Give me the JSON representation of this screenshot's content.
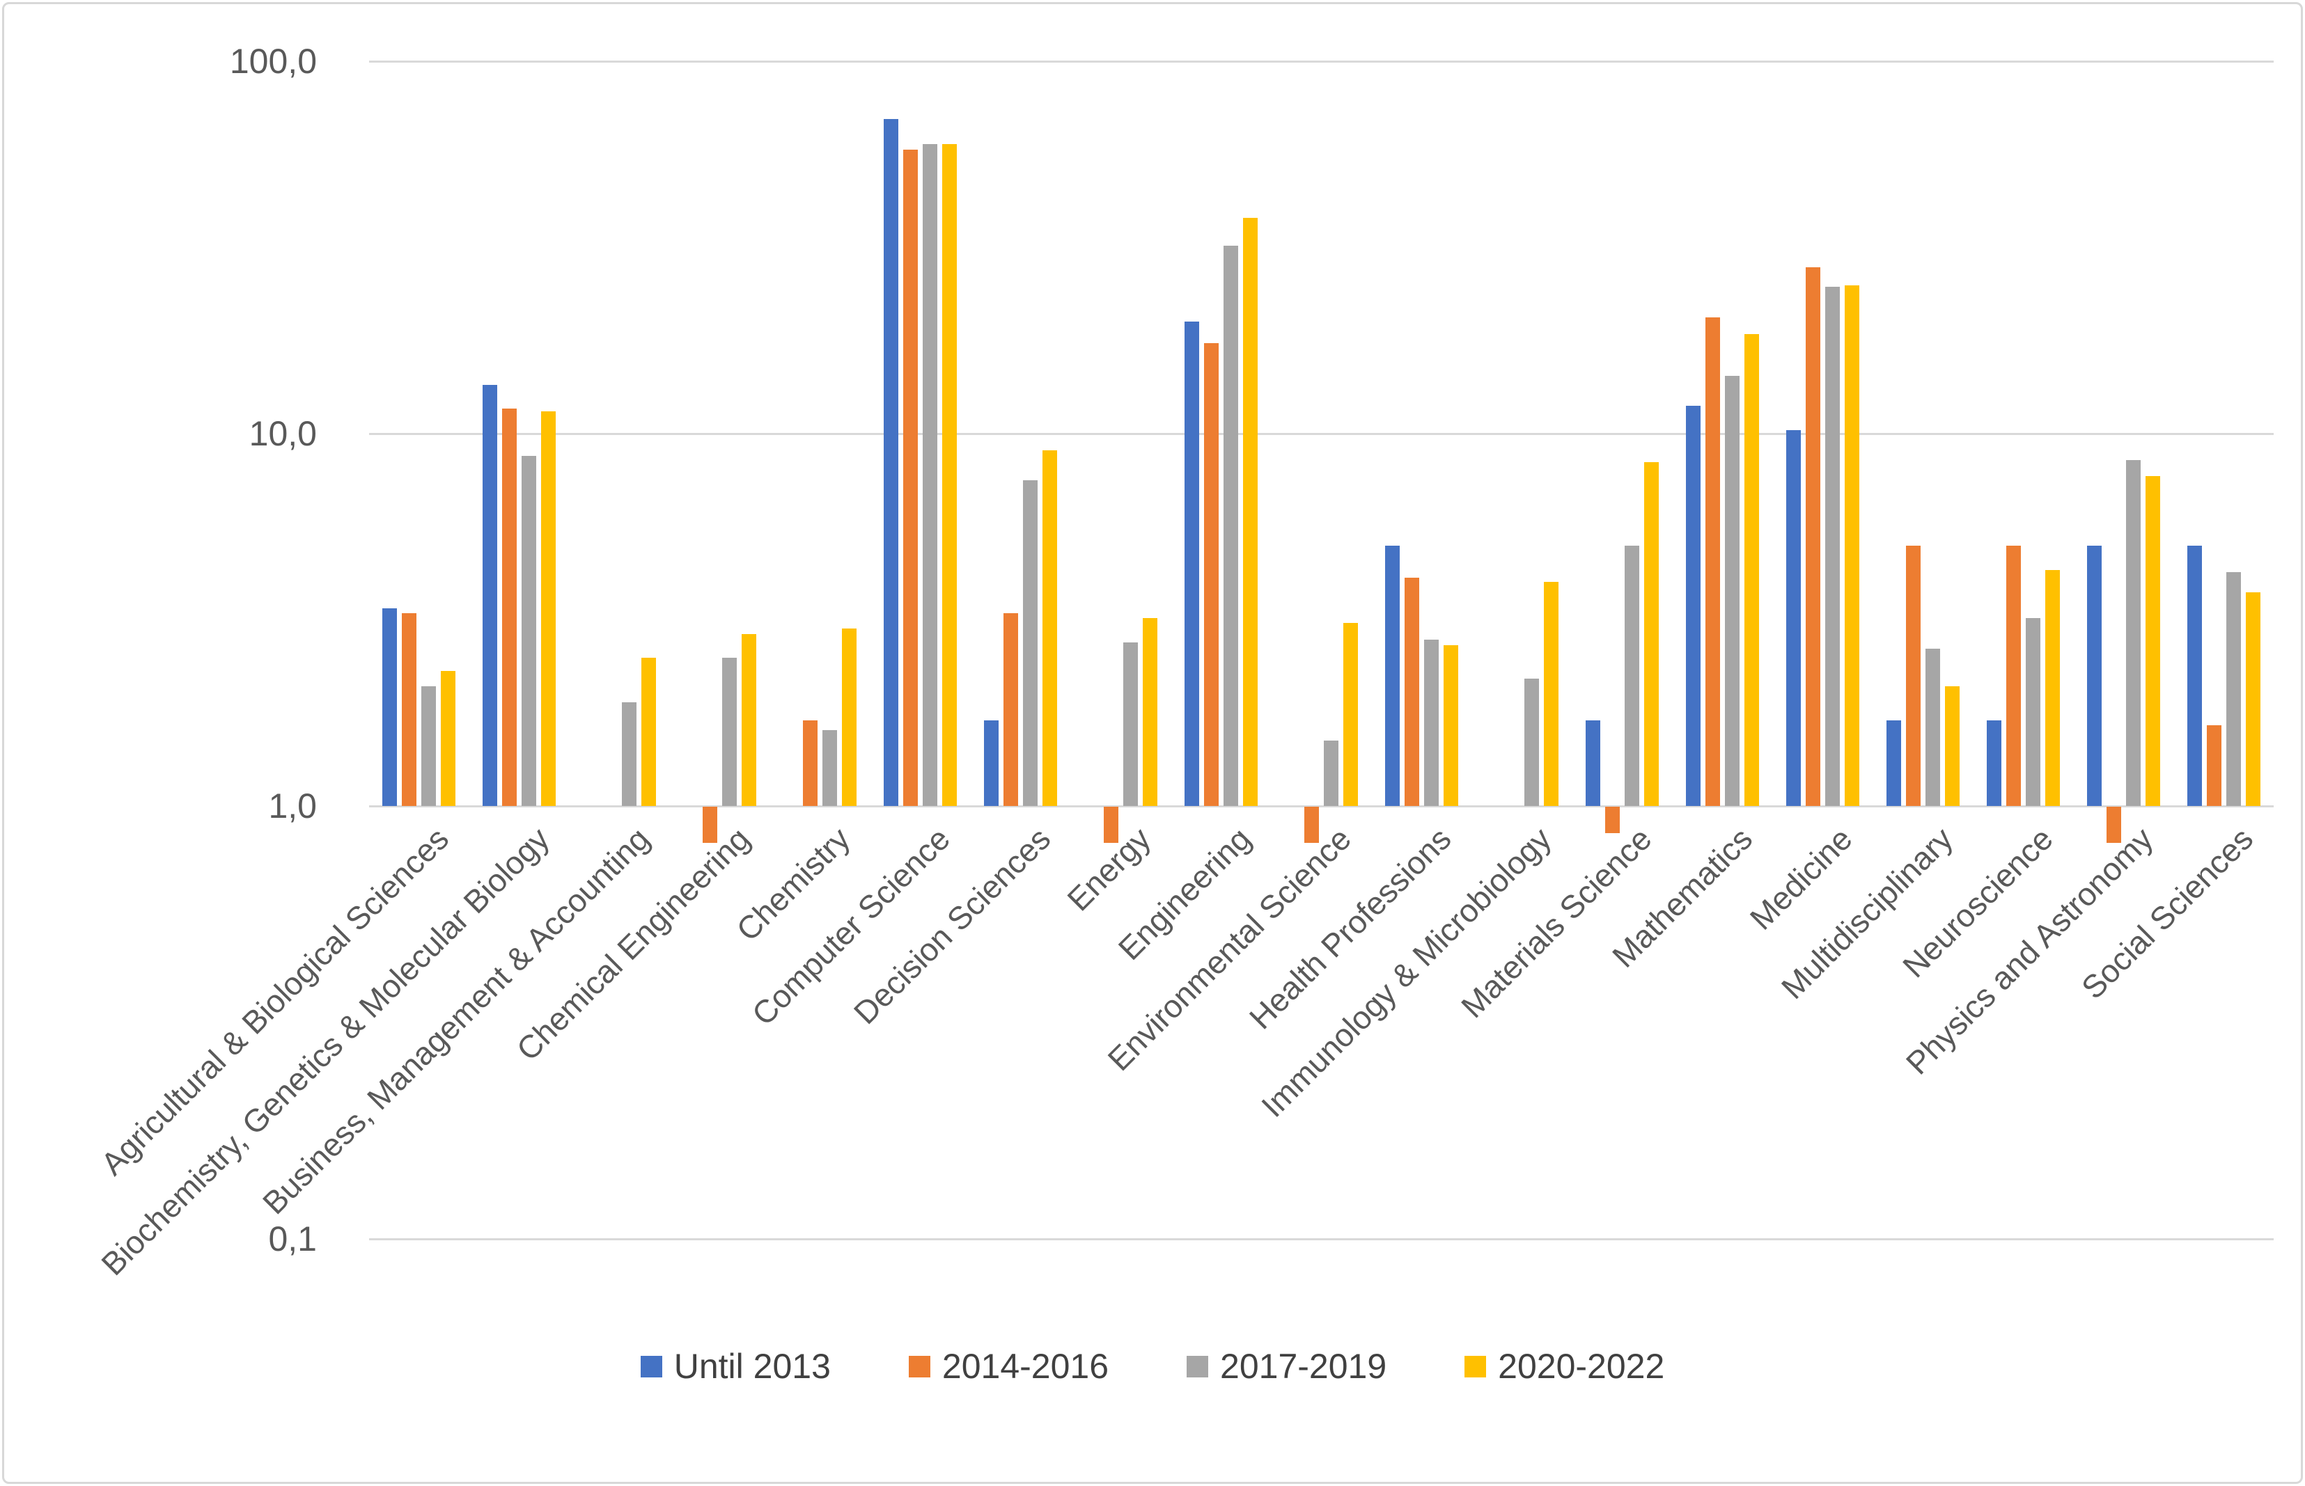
{
  "chart_data": {
    "type": "bar",
    "title": "",
    "xlabel": "",
    "ylabel": "",
    "y_axis": {
      "scale": "log",
      "tick_labels": [
        "100,0",
        "10,0",
        "1,0",
        "0,1"
      ],
      "tick_values": [
        100,
        10,
        1,
        0.1
      ],
      "range": [
        0.1,
        100
      ],
      "bar_baseline": 1.0,
      "grid": true
    },
    "legend_position": "bottom",
    "colors": {
      "gridline": "#D9D9D9",
      "axis_text": "#595959",
      "legend_text": "#404040",
      "background": "#FFFFFF"
    },
    "categories": [
      "Agricultural & Biological Sciences",
      "Biochemistry, Genetics & Molecular Biology",
      "Business, Management & Accounting",
      "Chemical Engineering",
      "Chemistry",
      "Computer Science",
      "Decision Sciences",
      "Energy",
      "Engineering",
      "Environmental Science",
      "Health Professions",
      "Immunology & Microbiology",
      "Materials Science",
      "Mathematics",
      "Medicine",
      "Multidisciplinary",
      "Neuroscience",
      "Physics and Astronomy",
      "Social Sciences"
    ],
    "series": [
      {
        "name": "Until 2013",
        "color": "#4472C4",
        "values": [
          3.4,
          13.5,
          null,
          null,
          null,
          70,
          1.7,
          null,
          20,
          null,
          5.0,
          null,
          1.7,
          11.9,
          10.2,
          1.7,
          1.7,
          5.0,
          5.0
        ]
      },
      {
        "name": "2014-2016",
        "color": "#ED7D31",
        "values": [
          3.3,
          11.7,
          null,
          0.8,
          1.7,
          58,
          3.3,
          0.8,
          17.5,
          0.8,
          4.1,
          null,
          0.85,
          20.5,
          28.0,
          5.0,
          5.0,
          0.8,
          1.65
        ]
      },
      {
        "name": "2017-2019",
        "color": "#A6A6A6",
        "values": [
          2.1,
          8.7,
          1.9,
          2.5,
          1.6,
          60,
          7.5,
          2.75,
          32,
          1.5,
          2.8,
          2.2,
          5.0,
          14.3,
          24.8,
          2.65,
          3.2,
          8.5,
          4.25
        ]
      },
      {
        "name": "2020-2022",
        "color": "#FFC000",
        "values": [
          2.3,
          11.5,
          2.5,
          2.9,
          3.0,
          60,
          9.0,
          3.2,
          38,
          3.1,
          2.7,
          4.0,
          8.4,
          18.5,
          25.0,
          2.1,
          4.3,
          7.7,
          3.75
        ]
      }
    ]
  }
}
